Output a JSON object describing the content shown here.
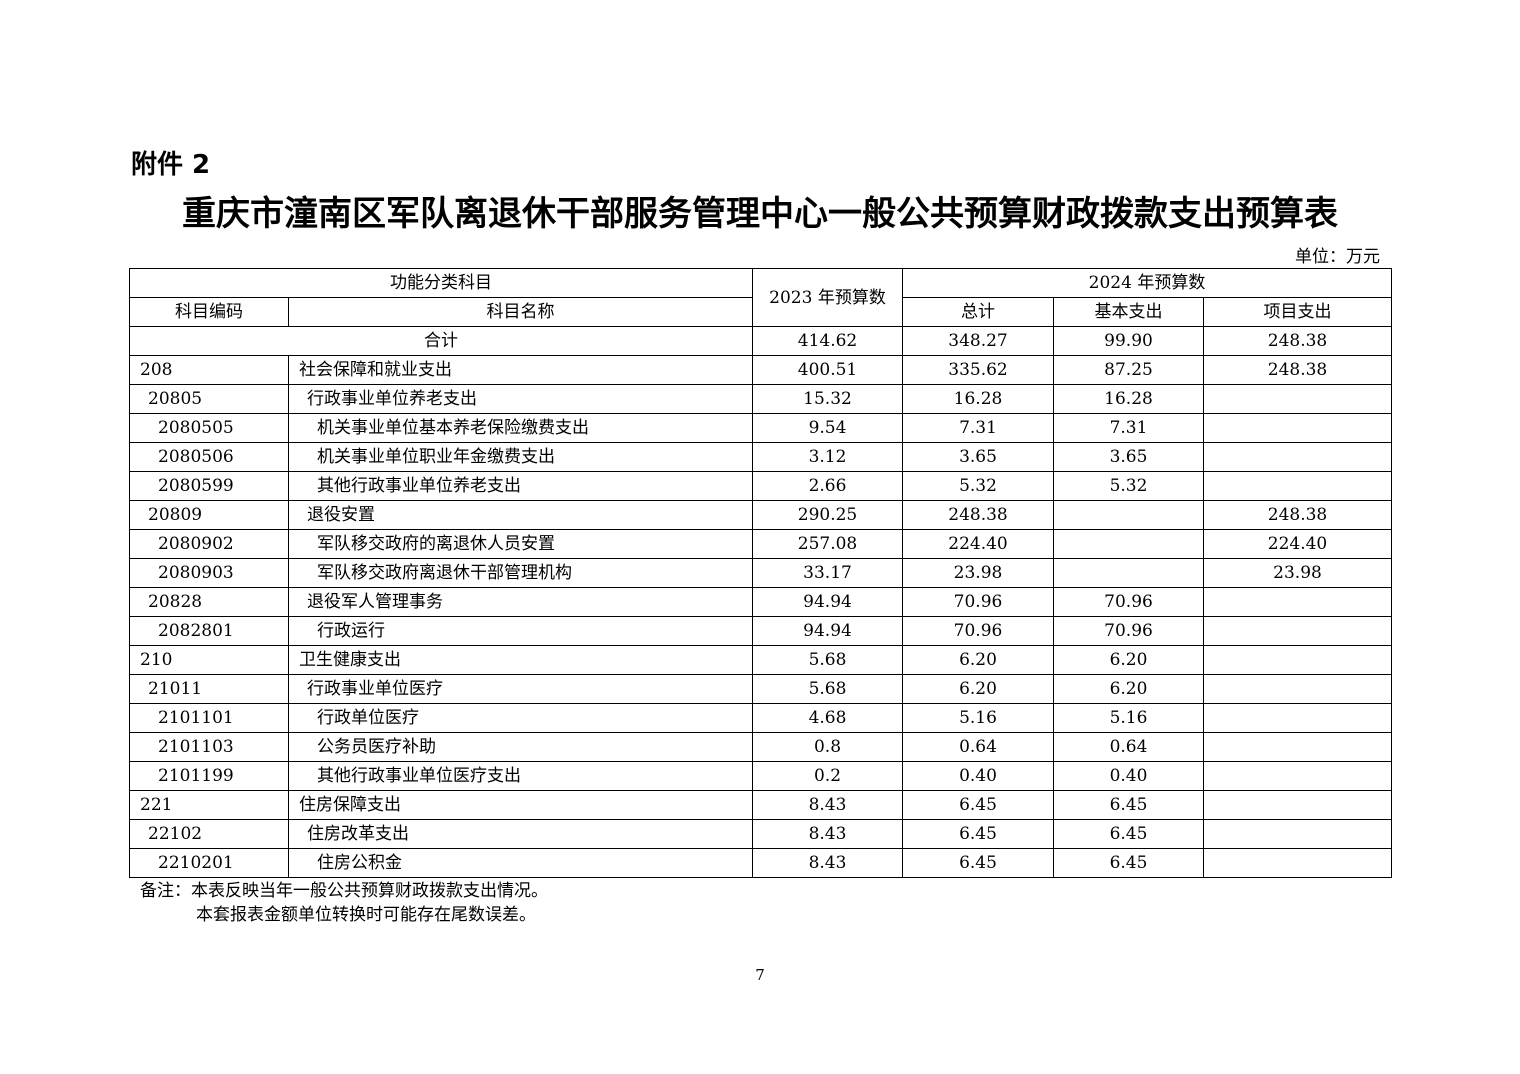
{
  "attachment": "附件 2",
  "title": "重庆市潼南区军队离退休干部服务管理中心一般公共预算财政拨款支出预算表",
  "unit": "单位：万元",
  "table": {
    "header": {
      "category": "功能分类科目",
      "y2023": "2023 年预算数",
      "y2024": "2024 年预算数",
      "code": "科目编码",
      "name": "科目名称",
      "total": "总计",
      "basic": "基本支出",
      "project": "项目支出"
    },
    "sum_row": {
      "label": "合计",
      "y2023": "414.62",
      "total": "348.27",
      "basic": "99.90",
      "project": "248.38"
    },
    "rows": [
      {
        "level": 1,
        "code": "208",
        "name": "社会保障和就业支出",
        "y2023": "400.51",
        "total": "335.62",
        "basic": "87.25",
        "project": "248.38"
      },
      {
        "level": 2,
        "code": "20805",
        "name": "行政事业单位养老支出",
        "y2023": "15.32",
        "total": "16.28",
        "basic": "16.28",
        "project": ""
      },
      {
        "level": 3,
        "code": "2080505",
        "name": "机关事业单位基本养老保险缴费支出",
        "y2023": "9.54",
        "total": "7.31",
        "basic": "7.31",
        "project": ""
      },
      {
        "level": 3,
        "code": "2080506",
        "name": "机关事业单位职业年金缴费支出",
        "y2023": "3.12",
        "total": "3.65",
        "basic": "3.65",
        "project": ""
      },
      {
        "level": 3,
        "code": "2080599",
        "name": "其他行政事业单位养老支出",
        "y2023": "2.66",
        "total": "5.32",
        "basic": "5.32",
        "project": ""
      },
      {
        "level": 2,
        "code": "20809",
        "name": "退役安置",
        "y2023": "290.25",
        "total": "248.38",
        "basic": "",
        "project": "248.38"
      },
      {
        "level": 3,
        "code": "2080902",
        "name": "军队移交政府的离退休人员安置",
        "y2023": "257.08",
        "total": "224.40",
        "basic": "",
        "project": "224.40"
      },
      {
        "level": 3,
        "code": "2080903",
        "name": "军队移交政府离退休干部管理机构",
        "y2023": "33.17",
        "total": "23.98",
        "basic": "",
        "project": "23.98"
      },
      {
        "level": 2,
        "code": "20828",
        "name": "退役军人管理事务",
        "y2023": "94.94",
        "total": "70.96",
        "basic": "70.96",
        "project": ""
      },
      {
        "level": 3,
        "code": "2082801",
        "name": "行政运行",
        "y2023": "94.94",
        "total": "70.96",
        "basic": "70.96",
        "project": ""
      },
      {
        "level": 1,
        "code": "210",
        "name": "卫生健康支出",
        "y2023": "5.68",
        "total": "6.20",
        "basic": "6.20",
        "project": ""
      },
      {
        "level": 2,
        "code": "21011",
        "name": "行政事业单位医疗",
        "y2023": "5.68",
        "total": "6.20",
        "basic": "6.20",
        "project": ""
      },
      {
        "level": 3,
        "code": "2101101",
        "name": "行政单位医疗",
        "y2023": "4.68",
        "total": "5.16",
        "basic": "5.16",
        "project": ""
      },
      {
        "level": 3,
        "code": "2101103",
        "name": "公务员医疗补助",
        "y2023": "0.8",
        "total": "0.64",
        "basic": "0.64",
        "project": ""
      },
      {
        "level": 3,
        "code": "2101199",
        "name": "其他行政事业单位医疗支出",
        "y2023": "0.2",
        "total": "0.40",
        "basic": "0.40",
        "project": ""
      },
      {
        "level": 1,
        "code": "221",
        "name": "住房保障支出",
        "y2023": "8.43",
        "total": "6.45",
        "basic": "6.45",
        "project": ""
      },
      {
        "level": 2,
        "code": "22102",
        "name": "住房改革支出",
        "y2023": "8.43",
        "total": "6.45",
        "basic": "6.45",
        "project": ""
      },
      {
        "level": 3,
        "code": "2210201",
        "name": "住房公积金",
        "y2023": "8.43",
        "total": "6.45",
        "basic": "6.45",
        "project": ""
      }
    ]
  },
  "notes": [
    "备注：本表反映当年一般公共预算财政拨款支出情况。",
    "本套报表金额单位转换时可能存在尾数误差。"
  ],
  "page_number": "7"
}
